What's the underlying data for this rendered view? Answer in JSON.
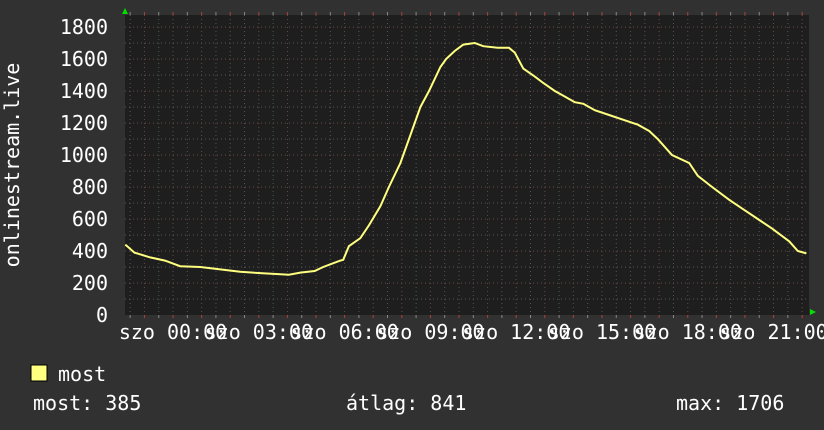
{
  "chart_data": {
    "type": "line",
    "ylabel": "onlinestream.live",
    "ylim": [
      0,
      1800
    ],
    "yticks": [
      0,
      200,
      400,
      600,
      800,
      1000,
      1200,
      1400,
      1600,
      1800
    ],
    "xlim_hours": [
      -1.68,
      22.24
    ],
    "xticks": [
      {
        "hour": 0,
        "label": "szo 00:00"
      },
      {
        "hour": 3,
        "label": "szo 03:00"
      },
      {
        "hour": 6,
        "label": "szo 06:00"
      },
      {
        "hour": 9,
        "label": "szo 09:00"
      },
      {
        "hour": 12,
        "label": "szo 12:00"
      },
      {
        "hour": 15,
        "label": "szo 15:00"
      },
      {
        "hour": 18,
        "label": "szo 18:00"
      },
      {
        "hour": 21,
        "label": "szo 21:00"
      }
    ],
    "grid": true,
    "legend_placement": "bottom-left",
    "series": [
      {
        "name": "most",
        "color": "#ffff80",
        "x": [
          -1.67,
          -1.35,
          -0.8,
          -0.28,
          0.25,
          0.95,
          1.65,
          2.35,
          3.05,
          3.75,
          4.05,
          4.45,
          4.95,
          5.25,
          5.85,
          5.95,
          6.15,
          6.55,
          6.85,
          7.25,
          7.55,
          7.95,
          8.25,
          8.65,
          8.95,
          9.35,
          9.55,
          9.85,
          10.15,
          10.55,
          10.85,
          11.35,
          11.75,
          11.95,
          12.25,
          12.65,
          12.95,
          13.35,
          13.65,
          14.05,
          14.35,
          14.75,
          15.25,
          15.75,
          16.25,
          16.65,
          16.95,
          17.45,
          18.05,
          18.35,
          18.85,
          19.45,
          19.95,
          20.45,
          20.95,
          21.55,
          21.85,
          22.15
        ],
        "values": [
          440,
          390,
          360,
          340,
          305,
          300,
          285,
          270,
          262,
          255,
          252,
          265,
          275,
          300,
          340,
          345,
          430,
          480,
          560,
          680,
          800,
          950,
          1100,
          1300,
          1400,
          1550,
          1600,
          1650,
          1690,
          1700,
          1680,
          1670,
          1670,
          1640,
          1540,
          1490,
          1450,
          1400,
          1370,
          1330,
          1320,
          1280,
          1250,
          1220,
          1190,
          1150,
          1100,
          1000,
          950,
          870,
          800,
          720,
          660,
          600,
          540,
          460,
          400,
          385
        ]
      }
    ],
    "legend": {
      "label": "most",
      "color": "#ffff80"
    },
    "stats": {
      "current": "most: 385",
      "average": "átlag: 841",
      "max": "max: 1706"
    }
  },
  "colors": {
    "background": "#313131",
    "plot": "#1e1e1e",
    "grid_minor": "#5a5a5a",
    "grid_major": "#8a4040",
    "arrow": "#00e000"
  }
}
